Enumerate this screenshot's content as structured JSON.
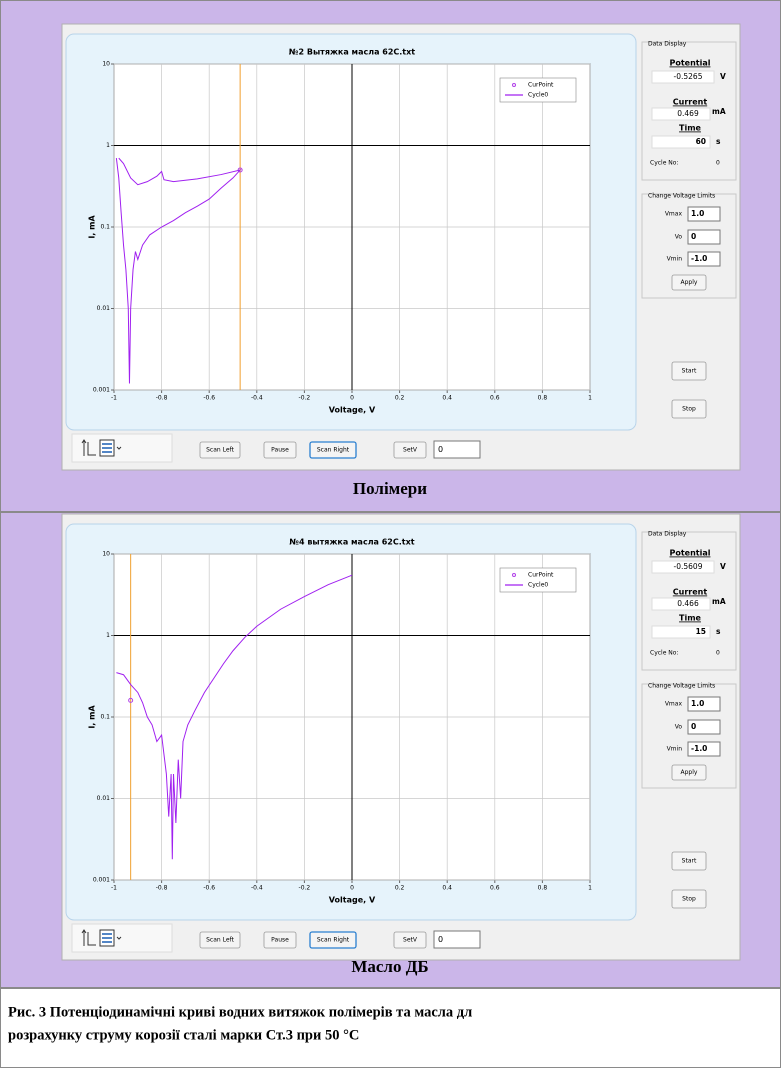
{
  "chart_data": [
    {
      "type": "line",
      "title": "№2 Вытяжка масла 62С.txt",
      "xlabel": "Voltage, V",
      "ylabel": "I, mA",
      "log_y": true,
      "grid": true,
      "legend": "upper right",
      "xlim": [
        -1,
        1
      ],
      "ylim": [
        0.001,
        10
      ],
      "xticks": [
        -1,
        -0.8,
        -0.6,
        -0.4,
        -0.2,
        0,
        0.2,
        0.4,
        0.6,
        0.8,
        1
      ],
      "yticks": [
        0.001,
        0.01,
        0.1,
        1,
        10
      ],
      "origin": [
        0,
        1
      ],
      "cursor_x": -0.47,
      "cursor_color": "#f0a030",
      "series": [
        {
          "name": "CurPoint",
          "color": "#b040e8",
          "marker": true,
          "x": [
            -0.47
          ],
          "values": [
            0.5
          ]
        },
        {
          "name": "Cycle0",
          "color": "#a020f0",
          "x": [
            -0.99,
            -0.98,
            -0.97,
            -0.96,
            -0.95,
            -0.94,
            -0.935,
            -0.93,
            -0.92,
            -0.91,
            -0.9,
            -0.88,
            -0.85,
            -0.8,
            -0.75,
            -0.7,
            -0.65,
            -0.6,
            -0.55,
            -0.5,
            -0.47,
            -0.55,
            -0.65,
            -0.75,
            -0.79,
            -0.8,
            -0.82,
            -0.86,
            -0.9,
            -0.93,
            -0.96,
            -0.98
          ],
          "values": [
            0.7,
            0.4,
            0.15,
            0.06,
            0.03,
            0.01,
            0.0012,
            0.01,
            0.03,
            0.05,
            0.04,
            0.06,
            0.08,
            0.1,
            0.12,
            0.15,
            0.18,
            0.22,
            0.3,
            0.4,
            0.5,
            0.44,
            0.39,
            0.36,
            0.38,
            0.48,
            0.42,
            0.36,
            0.33,
            0.4,
            0.6,
            0.7
          ]
        }
      ]
    },
    {
      "type": "line",
      "title": "№4 вытяжка масла 62С.txt",
      "xlabel": "Voltage, V",
      "ylabel": "I, mA",
      "log_y": true,
      "grid": true,
      "legend": "upper right",
      "xlim": [
        -1,
        1
      ],
      "ylim": [
        0.001,
        10
      ],
      "xticks": [
        -1,
        -0.8,
        -0.6,
        -0.4,
        -0.2,
        0,
        0.2,
        0.4,
        0.6,
        0.8,
        1
      ],
      "yticks": [
        0.001,
        0.01,
        0.1,
        1,
        10
      ],
      "origin": [
        0,
        1
      ],
      "cursor_x": -0.93,
      "cursor_color": "#f0a030",
      "series": [
        {
          "name": "CurPoint",
          "color": "#b040e8",
          "marker": true,
          "x": [
            -0.93
          ],
          "values": [
            0.16
          ]
        },
        {
          "name": "Cycle0",
          "color": "#a020f0",
          "x": [
            -0.99,
            -0.96,
            -0.93,
            -0.9,
            -0.88,
            -0.86,
            -0.84,
            -0.82,
            -0.8,
            -0.78,
            -0.77,
            -0.76,
            -0.755,
            -0.75,
            -0.74,
            -0.73,
            -0.72,
            -0.71,
            -0.69,
            -0.66,
            -0.62,
            -0.58,
            -0.54,
            -0.5,
            -0.45,
            -0.4,
            -0.3,
            -0.2,
            -0.1,
            0
          ],
          "values": [
            0.35,
            0.33,
            0.25,
            0.2,
            0.15,
            0.1,
            0.08,
            0.05,
            0.06,
            0.02,
            0.006,
            0.02,
            0.0018,
            0.02,
            0.005,
            0.03,
            0.01,
            0.05,
            0.08,
            0.12,
            0.2,
            0.3,
            0.45,
            0.65,
            0.95,
            1.3,
            2.1,
            3.0,
            4.2,
            5.5
          ]
        }
      ]
    }
  ],
  "panels": [
    {
      "data_display": {
        "heading": "Data Display",
        "potential_label": "Potential",
        "potential": "-0.5265",
        "potential_unit": "V",
        "current_label": "Current",
        "current": "0.469",
        "current_unit": "mA",
        "time_label": "Time",
        "time": "60",
        "time_unit": "s",
        "cycle_label": "Cycle No:",
        "cycle": "0"
      },
      "limits": {
        "heading": "Change Voltage Limits",
        "vmax_label": "Vmax",
        "vmax": "1.0",
        "vo_label": "Vo",
        "vo": "0",
        "vmin_label": "Vmin",
        "vmin": "-1.0",
        "apply": "Apply"
      },
      "start": "Start",
      "stop": "Stop",
      "toolbar": {
        "scan_left": "Scan Left",
        "pause": "Pause",
        "scan_right": "Scan Right",
        "setv": "SetV",
        "setv_value": "0"
      },
      "caption": "Полімери"
    },
    {
      "data_display": {
        "heading": "Data Display",
        "potential_label": "Potential",
        "potential": "-0.5609",
        "potential_unit": "V",
        "current_label": "Current",
        "current": "0.466",
        "current_unit": "mA",
        "time_label": "Time",
        "time": "15",
        "time_unit": "s",
        "cycle_label": "Cycle No:",
        "cycle": "0"
      },
      "limits": {
        "heading": "Change Voltage Limits",
        "vmax_label": "Vmax",
        "vmax": "1.0",
        "vo_label": "Vo",
        "vo": "0",
        "vmin_label": "Vmin",
        "vmin": "-1.0",
        "apply": "Apply"
      },
      "start": "Start",
      "stop": "Stop",
      "toolbar": {
        "scan_left": "Scan Left",
        "pause": "Pause",
        "scan_right": "Scan Right",
        "setv": "SetV",
        "setv_value": "0"
      },
      "caption": "Масло ДБ"
    }
  ],
  "figure_caption": [
    "Рис. 3  Потенціодинамічні криві водних витяжок полімерів та масла дл",
    "розрахунку струму корозії сталі марки Ст.3 при 50 °С"
  ]
}
